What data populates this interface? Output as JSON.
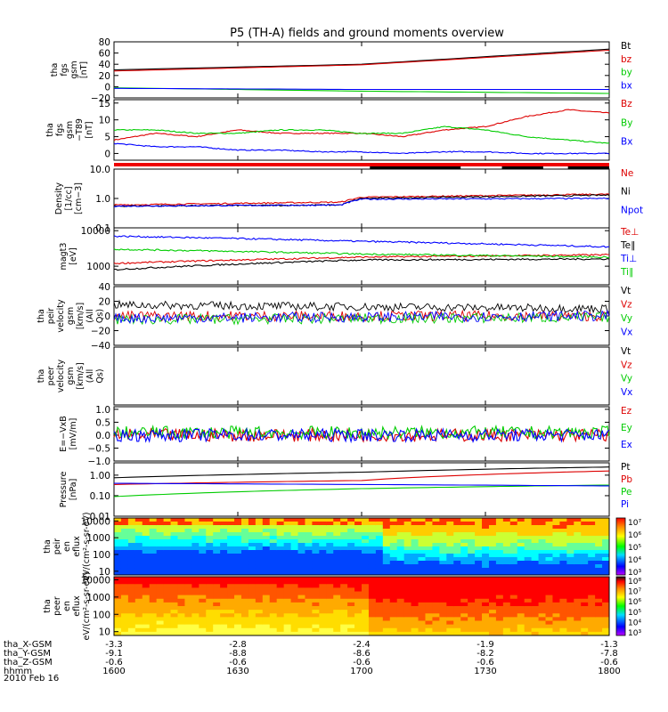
{
  "title": "P5 (TH-A) fields and ground moments overview",
  "time_axis": {
    "ticks": [
      "1600",
      "1630",
      "1700",
      "1730",
      "1800"
    ],
    "range": [
      0,
      120
    ]
  },
  "ephemeris": {
    "rows": [
      {
        "label": "tha_X-GSM",
        "values": [
          "-3.3",
          "-2.8",
          "-2.4",
          "-1.9",
          "-1.3"
        ]
      },
      {
        "label": "tha_Y-GSM",
        "values": [
          "-9.1",
          "-8.8",
          "-8.6",
          "-8.2",
          "-7.8"
        ]
      },
      {
        "label": "tha_Z-GSM",
        "values": [
          "-0.6",
          "-0.6",
          "-0.6",
          "-0.6",
          "-0.6"
        ]
      },
      {
        "label": "hhmm",
        "values": [
          "1600",
          "1630",
          "1700",
          "1730",
          "1800"
        ]
      }
    ],
    "date": "2010 Feb 16"
  },
  "colorbar1": {
    "ticks": [
      "10⁷",
      "10⁶",
      "10⁵",
      "10⁴",
      "10³"
    ]
  },
  "colorbar2": {
    "ticks": [
      "10⁸",
      "10⁷",
      "10⁶",
      "10⁵",
      "10⁴",
      "10³"
    ]
  },
  "chart_data": [
    {
      "type": "line",
      "ylabel": "tha fgs gsm [nT]",
      "ylim": [
        -20,
        80
      ],
      "yticks": [
        "80",
        "60",
        "40",
        "20",
        "0",
        "−20"
      ],
      "series": [
        {
          "name": "Bt",
          "color": "#000000",
          "x": [
            0,
            60,
            120
          ],
          "values": [
            30,
            40,
            67
          ]
        },
        {
          "name": "bz",
          "color": "#dd0000",
          "x": [
            0,
            60,
            120
          ],
          "values": [
            28,
            39,
            65
          ]
        },
        {
          "name": "by",
          "color": "#00cc00",
          "x": [
            0,
            60,
            120
          ],
          "values": [
            -2,
            -8,
            -12
          ]
        },
        {
          "name": "bx",
          "color": "#0000ff",
          "x": [
            0,
            60,
            120
          ],
          "values": [
            -3,
            -5,
            -5
          ]
        }
      ]
    },
    {
      "type": "line",
      "ylabel": "tha fgs gsm −T89 [nT]",
      "ylim": [
        -2,
        16
      ],
      "yticks": [
        "15",
        "10",
        "5",
        "0"
      ],
      "series": [
        {
          "name": "Bz",
          "color": "#dd0000",
          "x": [
            0,
            10,
            20,
            30,
            40,
            50,
            60,
            70,
            80,
            90,
            100,
            110,
            120
          ],
          "values": [
            4,
            6,
            5,
            7,
            6,
            6,
            6,
            5,
            7,
            8,
            11,
            13,
            12
          ]
        },
        {
          "name": "By",
          "color": "#00cc00",
          "x": [
            0,
            10,
            20,
            30,
            40,
            50,
            60,
            70,
            80,
            90,
            100,
            110,
            120
          ],
          "values": [
            7,
            7,
            6,
            6,
            7,
            7,
            6,
            6,
            8,
            7,
            5,
            4,
            3
          ]
        },
        {
          "name": "Bx",
          "color": "#0000ff",
          "x": [
            0,
            10,
            20,
            30,
            40,
            50,
            60,
            70,
            80,
            90,
            100,
            110,
            120
          ],
          "values": [
            3,
            2,
            2,
            1,
            1,
            0.5,
            0.5,
            0,
            0.5,
            0.5,
            0,
            0,
            0
          ]
        }
      ]
    },
    {
      "type": "line",
      "ylabel": "Density [1/cc] [cm−3]",
      "ylim": [
        0.1,
        10
      ],
      "log": true,
      "yticks": [
        "10.0",
        "1.0",
        "0.1"
      ],
      "series": [
        {
          "name": "Ne",
          "color": "#dd0000",
          "x": [
            0,
            55,
            60,
            120
          ],
          "values": [
            0.6,
            0.75,
            1.1,
            1.4
          ]
        },
        {
          "name": "Ni",
          "color": "#000000",
          "x": [
            0,
            55,
            60,
            120
          ],
          "values": [
            0.55,
            0.6,
            1.0,
            1.3
          ]
        },
        {
          "name": "Npot",
          "color": "#0000ff",
          "x": [
            0,
            55,
            60,
            120
          ],
          "values": [
            0.55,
            0.6,
            0.95,
            1.0
          ]
        }
      ]
    },
    {
      "type": "line",
      "ylabel": "magt3 [eV]",
      "ylim": [
        300,
        12000
      ],
      "log": true,
      "yticks": [
        "10000",
        "1000"
      ],
      "series": [
        {
          "name": "Te⊥",
          "color": "#dd0000",
          "x": [
            0,
            60,
            120
          ],
          "values": [
            1200,
            1800,
            2100
          ]
        },
        {
          "name": "Te∥",
          "color": "#000000",
          "x": [
            0,
            60,
            120
          ],
          "values": [
            800,
            1500,
            1600
          ]
        },
        {
          "name": "Ti⊥",
          "color": "#0000ff",
          "x": [
            0,
            60,
            120
          ],
          "values": [
            7000,
            5000,
            3500
          ]
        },
        {
          "name": "Ti∥",
          "color": "#00cc00",
          "x": [
            0,
            60,
            120
          ],
          "values": [
            3000,
            2200,
            1800
          ]
        }
      ]
    },
    {
      "type": "line",
      "ylabel": "tha peir velocity gsm [km/s] (All Qs)",
      "ylim": [
        -40,
        40
      ],
      "yticks": [
        "40",
        "20",
        "0",
        "−20",
        "−40"
      ],
      "series": [
        {
          "name": "Vt",
          "color": "#000000",
          "x": [
            0,
            120
          ],
          "values": [
            15,
            10
          ]
        },
        {
          "name": "Vz",
          "color": "#dd0000",
          "x": [
            0,
            120
          ],
          "values": [
            0,
            0
          ]
        },
        {
          "name": "Vy",
          "color": "#00cc00",
          "x": [
            0,
            120
          ],
          "values": [
            -5,
            -2
          ]
        },
        {
          "name": "Vx",
          "color": "#0000ff",
          "x": [
            0,
            120
          ],
          "values": [
            -3,
            0
          ]
        }
      ]
    },
    {
      "type": "line",
      "ylabel": "tha peer velocity gsm [km/s] (All Qs)",
      "series": [
        {
          "name": "Vt",
          "color": "#000000",
          "values": []
        },
        {
          "name": "Vz",
          "color": "#dd0000",
          "values": []
        },
        {
          "name": "Vy",
          "color": "#00cc00",
          "values": []
        },
        {
          "name": "Vx",
          "color": "#0000ff",
          "values": []
        }
      ]
    },
    {
      "type": "line",
      "ylabel": "E=−VxB [mV/m]",
      "ylim": [
        -1,
        1.1
      ],
      "yticks": [
        "1.0",
        "0.5",
        "0.0",
        "−0.5",
        "−1.0"
      ],
      "series": [
        {
          "name": "Ez",
          "color": "#dd0000",
          "x": [
            0,
            120
          ],
          "values": [
            0,
            0
          ]
        },
        {
          "name": "Ey",
          "color": "#00cc00",
          "x": [
            0,
            120
          ],
          "values": [
            0.1,
            0.1
          ]
        },
        {
          "name": "Ex",
          "color": "#0000ff",
          "x": [
            0,
            120
          ],
          "values": [
            0,
            0
          ]
        }
      ]
    },
    {
      "type": "line",
      "ylabel": "Pressure [nPa]",
      "ylim": [
        0.01,
        4
      ],
      "log": true,
      "yticks": [
        "1.00",
        "0.10",
        "0.01"
      ],
      "series": [
        {
          "name": "Pt",
          "color": "#000000",
          "x": [
            0,
            60,
            120
          ],
          "values": [
            0.75,
            1.4,
            2.5
          ]
        },
        {
          "name": "Pb",
          "color": "#dd0000",
          "x": [
            0,
            60,
            120
          ],
          "values": [
            0.35,
            0.55,
            1.6
          ]
        },
        {
          "name": "Pe",
          "color": "#00cc00",
          "x": [
            0,
            60,
            120
          ],
          "values": [
            0.09,
            0.22,
            0.33
          ]
        },
        {
          "name": "Pi",
          "color": "#0000ff",
          "x": [
            0,
            60,
            120
          ],
          "values": [
            0.4,
            0.35,
            0.3
          ]
        }
      ]
    },
    {
      "type": "heatmap",
      "ylabel": "tha peir en eflux eV/(cm²-s-sr-eV)",
      "log": true,
      "yticks": [
        "10000",
        "1000",
        "100",
        "10"
      ]
    },
    {
      "type": "heatmap",
      "ylabel": "tha peer en eflux eV/(cm²-s-sr-eV)",
      "log": true,
      "yticks": [
        "10000",
        "1000",
        "100",
        "10"
      ]
    }
  ]
}
